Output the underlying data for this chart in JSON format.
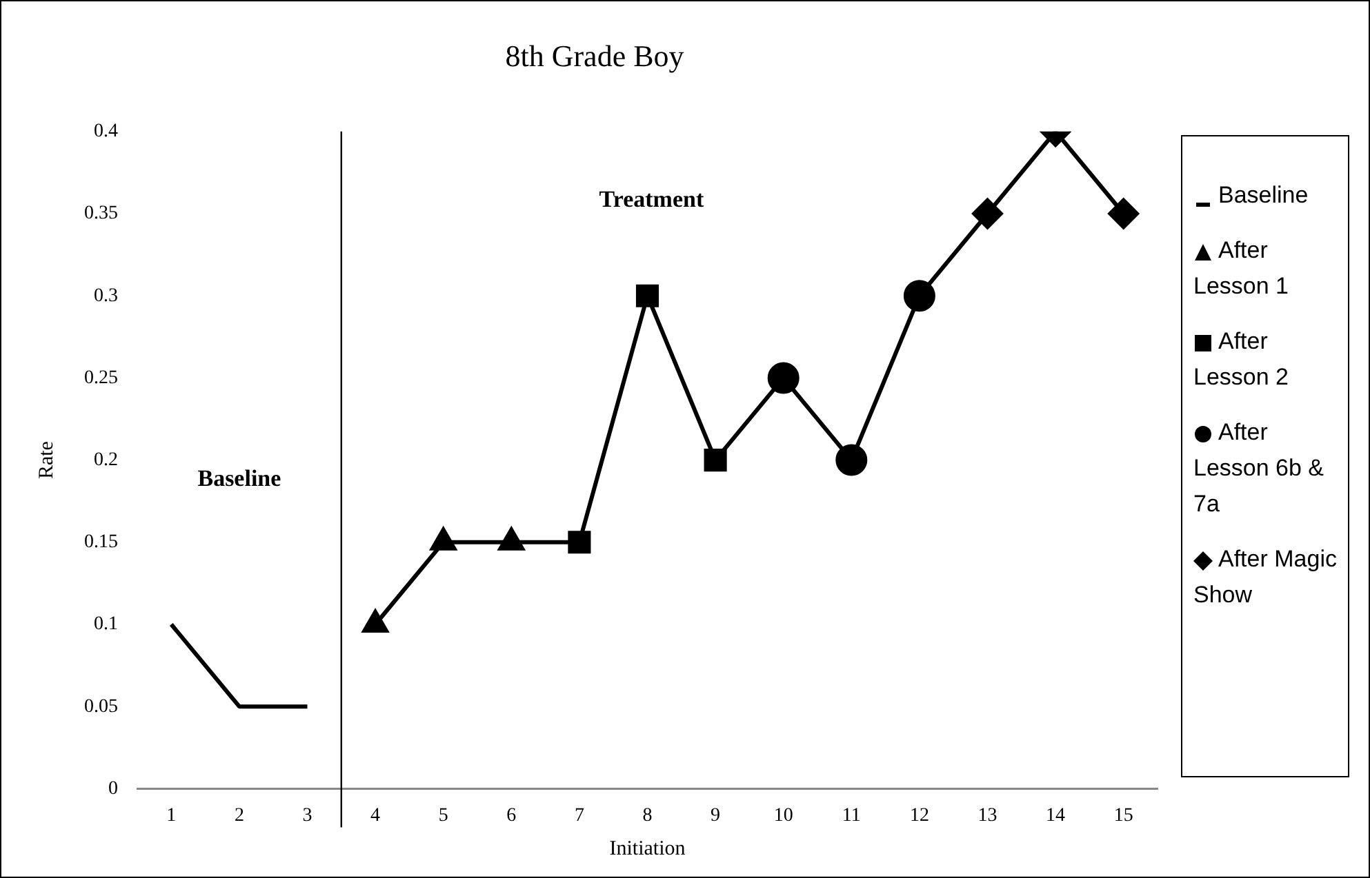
{
  "chart_data": {
    "type": "line",
    "title": "8th Grade Boy",
    "xlabel": "Initiation",
    "ylabel": "Rate",
    "x": [
      1,
      2,
      3,
      4,
      5,
      6,
      7,
      8,
      9,
      10,
      11,
      12,
      13,
      14,
      15
    ],
    "xlim": [
      0.5,
      15.5
    ],
    "xticks": [
      1,
      2,
      3,
      4,
      5,
      6,
      7,
      8,
      9,
      10,
      11,
      12,
      13,
      14,
      15
    ],
    "ylim": [
      0,
      0.4
    ],
    "yticks": [
      0,
      0.05,
      0.1,
      0.15,
      0.2,
      0.25,
      0.3,
      0.35,
      0.4
    ],
    "grid": false,
    "legend": "right",
    "line_style": "solid",
    "series": [
      {
        "name": "Baseline",
        "color": "#000000",
        "marker": "none",
        "values": [
          0.1,
          0.05,
          0.05,
          null,
          null,
          null,
          null,
          null,
          null,
          null,
          null,
          null,
          null,
          null,
          null
        ]
      },
      {
        "color": "#000000",
        "marker": "none",
        "values": [
          null,
          null,
          null,
          0.1,
          0.15,
          0.15,
          0.15,
          0.3,
          0.2,
          0.25,
          0.2,
          0.3,
          0.35,
          0.4,
          0.35
        ]
      },
      {
        "name": "After Lesson 1",
        "type": "scatter",
        "color": "#000000",
        "marker": "triangle",
        "values": [
          null,
          null,
          null,
          0.1,
          0.15,
          0.15,
          null,
          null,
          null,
          null,
          null,
          null,
          null,
          null,
          null
        ]
      },
      {
        "name": "After Lesson 2",
        "type": "scatter",
        "color": "#000000",
        "marker": "square",
        "values": [
          null,
          null,
          null,
          null,
          null,
          null,
          0.15,
          0.3,
          0.2,
          null,
          null,
          null,
          null,
          null,
          null
        ]
      },
      {
        "name": "After Lesson 6b & 7a",
        "type": "scatter",
        "color": "#000000",
        "marker": "circle",
        "values": [
          null,
          null,
          null,
          null,
          null,
          null,
          null,
          null,
          null,
          0.25,
          0.2,
          0.3,
          null,
          null,
          null
        ]
      },
      {
        "name": "After Magic Show",
        "type": "scatter",
        "color": "#000000",
        "marker": "diamond",
        "values": [
          null,
          null,
          null,
          null,
          null,
          null,
          null,
          null,
          null,
          null,
          null,
          null,
          0.35,
          0.4,
          0.35
        ]
      }
    ],
    "ref_lines": [
      {
        "axis": "x",
        "value": 3.5,
        "color": "#000000"
      }
    ],
    "annotations": [
      "Baseline",
      "Treatment"
    ]
  }
}
